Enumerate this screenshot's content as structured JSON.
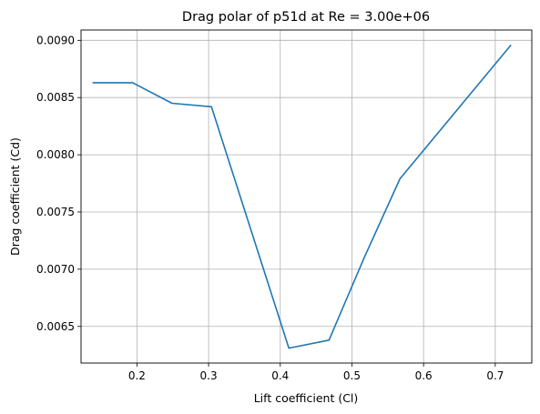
{
  "chart_data": {
    "type": "line",
    "title": "Drag polar of p51d at Re = 3.00e+06",
    "xlabel": "Lift coefficient (Cl)",
    "ylabel": "Drag coefficient (Cd)",
    "xlim": [
      0.122,
      0.751
    ],
    "ylim": [
      0.00618,
      0.00909
    ],
    "xticks": [
      0.2,
      0.3,
      0.4,
      0.5,
      0.6,
      0.7
    ],
    "xtick_labels": [
      "0.2",
      "0.3",
      "0.4",
      "0.5",
      "0.6",
      "0.7"
    ],
    "yticks": [
      0.0065,
      0.007,
      0.0075,
      0.008,
      0.0085,
      0.009
    ],
    "ytick_labels": [
      "0.0065",
      "0.0070",
      "0.0075",
      "0.0080",
      "0.0085",
      "0.0090"
    ],
    "grid": true,
    "series": [
      {
        "color": "#1f77b4",
        "x": [
          0.138,
          0.194,
          0.249,
          0.304,
          0.412,
          0.468,
          0.517,
          0.567,
          0.722
        ],
        "y": [
          0.00863,
          0.00863,
          0.00845,
          0.00842,
          0.00631,
          0.00638,
          0.0071,
          0.00779,
          0.00896
        ]
      }
    ]
  }
}
